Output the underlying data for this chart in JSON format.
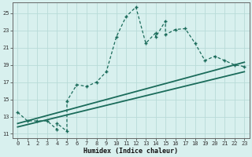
{
  "xlabel": "Humidex (Indice chaleur)",
  "bg_color": "#d8f0ee",
  "grid_color": "#b8dbd8",
  "line_color": "#1a6b5a",
  "xlim": [
    -0.5,
    23.5
  ],
  "ylim": [
    10.5,
    26.2
  ],
  "xticks": [
    0,
    1,
    2,
    3,
    4,
    5,
    6,
    7,
    8,
    9,
    10,
    11,
    12,
    13,
    14,
    15,
    16,
    17,
    18,
    19,
    20,
    21,
    22,
    23
  ],
  "yticks": [
    11,
    13,
    15,
    17,
    19,
    21,
    23,
    25
  ],
  "curve_x": [
    0,
    1,
    2,
    3,
    4,
    4,
    5,
    5,
    6,
    7,
    8,
    9,
    10,
    11,
    12,
    13,
    14,
    14,
    15,
    15,
    16,
    17,
    18,
    19,
    20,
    21,
    22,
    23
  ],
  "curve_y": [
    13.5,
    12.5,
    12.5,
    12.5,
    11.5,
    12.2,
    11.3,
    14.8,
    16.7,
    16.5,
    17.0,
    18.2,
    22.2,
    24.6,
    25.7,
    21.5,
    22.7,
    22.2,
    24.1,
    22.5,
    23.1,
    23.2,
    21.5,
    19.5,
    20.0,
    19.5,
    19.0,
    18.8
  ],
  "line1_x": [
    0,
    23
  ],
  "line1_y": [
    12.2,
    19.3
  ],
  "line2_x": [
    0,
    23
  ],
  "line2_y": [
    11.8,
    18.2
  ]
}
